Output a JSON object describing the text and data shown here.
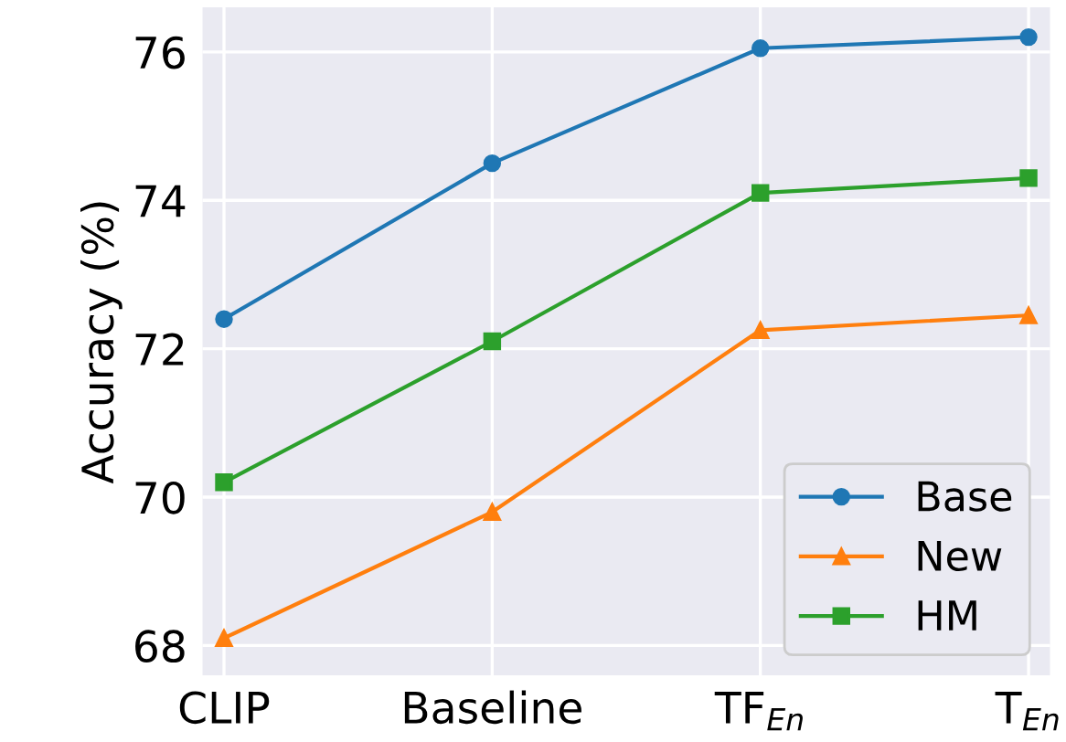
{
  "chart_data": {
    "type": "line",
    "ylabel": "Accuracy (%)",
    "categories": [
      "CLIP",
      "Baseline",
      "TF$_{En}$",
      "T$_{En}$"
    ],
    "series": [
      {
        "name": "Base",
        "color": "#1f77b4",
        "marker": "circle",
        "values": [
          72.4,
          74.5,
          76.05,
          76.2
        ]
      },
      {
        "name": "New",
        "color": "#ff7f0e",
        "marker": "triangle",
        "values": [
          68.1,
          69.8,
          72.25,
          72.45
        ]
      },
      {
        "name": "HM",
        "color": "#2ca02c",
        "marker": "square",
        "values": [
          70.2,
          72.1,
          74.1,
          74.3
        ]
      }
    ],
    "ylim": [
      67.6,
      76.6
    ],
    "yticks": [
      68,
      70,
      72,
      74,
      76
    ],
    "grid": true,
    "legend": "bottom right",
    "line_style": "solid"
  }
}
